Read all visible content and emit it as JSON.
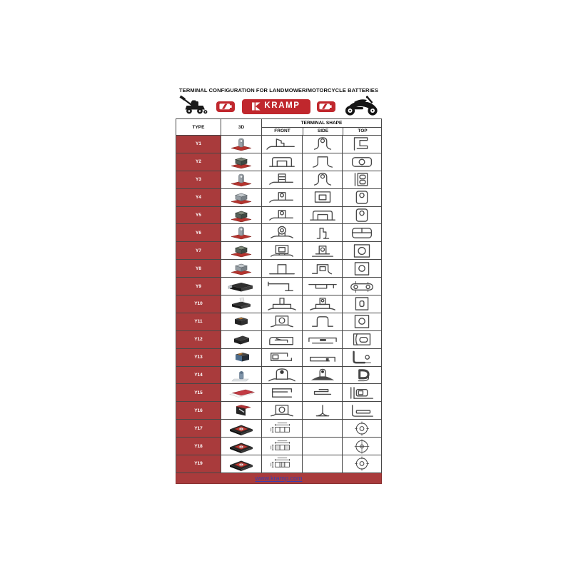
{
  "document": {
    "title": "TERMINAL CONFIGURATION FOR LANDMOWER/MOTORCYCLE BATTERIES",
    "brand": "KRAMP",
    "footer_link": "www.kramp.com"
  },
  "colors": {
    "brick_red": "#A93B3C",
    "logo_red": "#C0272D",
    "drawing_line_gray": "#474747",
    "link_blue": "#3B3FAE"
  },
  "header_icons": [
    "lawnmower-icon",
    "battery-icon",
    "kramp-logo",
    "battery-icon",
    "motorcycle-icon"
  ],
  "table": {
    "columns": {
      "type": "TYPE",
      "three_d": "3D",
      "terminal_shape": "TERMINAL SHAPE",
      "front": "FRONT",
      "side": "SIDE",
      "top": "TOP"
    },
    "rows": [
      {
        "type": "Y1",
        "thumb": "gray-eyelet-post",
        "front": "flag-post",
        "side": "eyelet-post",
        "top": "e-bracket"
      },
      {
        "type": "Y2",
        "thumb": "green-box",
        "front": "bracket-notch",
        "side": "plain-post",
        "top": "oval-circle"
      },
      {
        "type": "Y3",
        "thumb": "gray-eyelet-post",
        "front": "segmented-post",
        "side": "eyelet-post",
        "top": "stacked-rect"
      },
      {
        "type": "Y4",
        "thumb": "gray-cube",
        "front": "post-hole",
        "side": "square-in-square",
        "top": "oval-circle-tall"
      },
      {
        "type": "Y5",
        "thumb": "green-box",
        "front": "post-hole",
        "side": "bracket-notch",
        "top": "oval-circle-tall"
      },
      {
        "type": "Y6",
        "thumb": "gray-eyelet-post",
        "front": "ring-post",
        "side": "l-post",
        "top": "split-box"
      },
      {
        "type": "Y7",
        "thumb": "green-box",
        "front": "square-in-square-post",
        "side": "post-hole-base",
        "top": "rect-circle"
      },
      {
        "type": "Y8",
        "thumb": "gray-cube",
        "front": "plain-post-tall",
        "side": "square-in-square-curve",
        "top": "square-circle"
      },
      {
        "type": "Y9",
        "thumb": "flat-connector",
        "front": "hook-bar",
        "side": "notch-bar",
        "top": "chain-link"
      },
      {
        "type": "Y10",
        "thumb": "flat-tab",
        "front": "t-post",
        "side": "post-hole-on-base",
        "top": "rect-slot"
      },
      {
        "type": "Y11",
        "thumb": "dark-label-box",
        "front": "square-circle-base",
        "side": "arch",
        "top": "square-circle"
      },
      {
        "type": "Y12",
        "thumb": "dark-wedge",
        "front": "slot-box",
        "side": "flat-bar-rect",
        "top": "curved-slot-box"
      },
      {
        "type": "Y13",
        "thumb": "blue-box",
        "front": "corner-bracket-sq",
        "side": "flat-bar-mark",
        "top": "corner-circle"
      },
      {
        "type": "Y14",
        "thumb": "small-post",
        "front": "dome-post",
        "side": "dome-flare",
        "top": "d-ring"
      },
      {
        "type": "Y15",
        "thumb": "red-plate",
        "front": "clip-rect",
        "side": "clip-small",
        "top": "nested-corner"
      },
      {
        "type": "Y16",
        "thumb": "dark-red-box",
        "front": "square-circle-base",
        "side": "thin-pole",
        "top": "corner-bar"
      },
      {
        "type": "Y17",
        "thumb": "battery-top",
        "front": "dim-drawing-a",
        "side": "",
        "top": "washer"
      },
      {
        "type": "Y18",
        "thumb": "battery-top",
        "front": "dim-drawing-b",
        "side": "",
        "top": "washer-cross"
      },
      {
        "type": "Y19",
        "thumb": "battery-top",
        "front": "dim-drawing-c",
        "side": "",
        "top": "washer"
      }
    ]
  }
}
